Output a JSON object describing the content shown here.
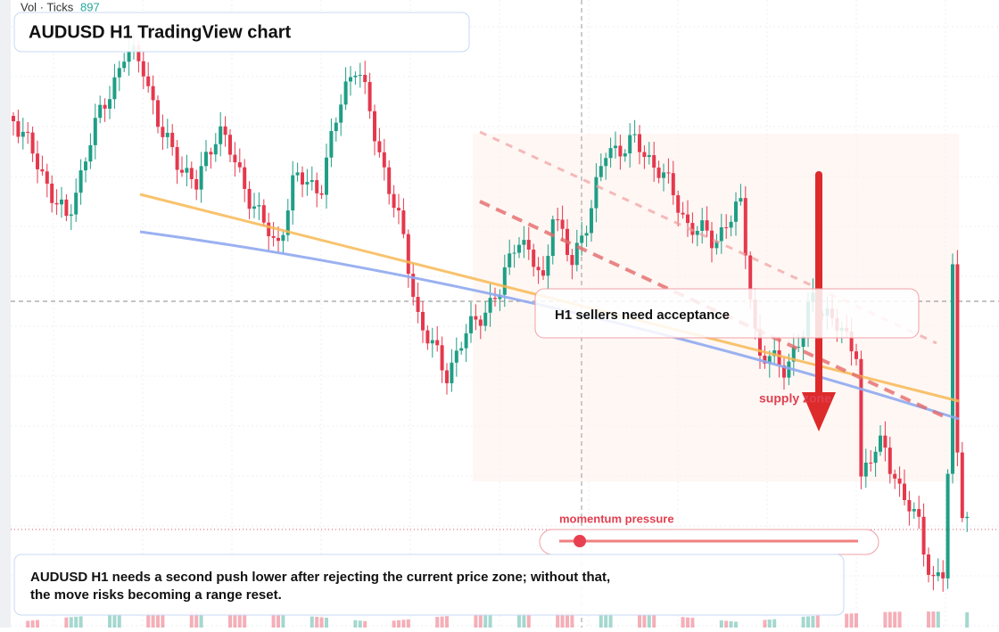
{
  "header": {
    "indicator": "Vol · Ticks",
    "indicator_value": "897",
    "title": "AUDUSD H1 TradingView chart"
  },
  "annotations": {
    "zone_label": "H1 sellers need acceptance",
    "supply": "supply zone",
    "momentum": "momentum pressure"
  },
  "summary": {
    "lines": [
      "AUDUSD H1 needs a second push lower after rejecting the current price zone; without that,",
      "the move risks becoming a range reset."
    ]
  }
}
